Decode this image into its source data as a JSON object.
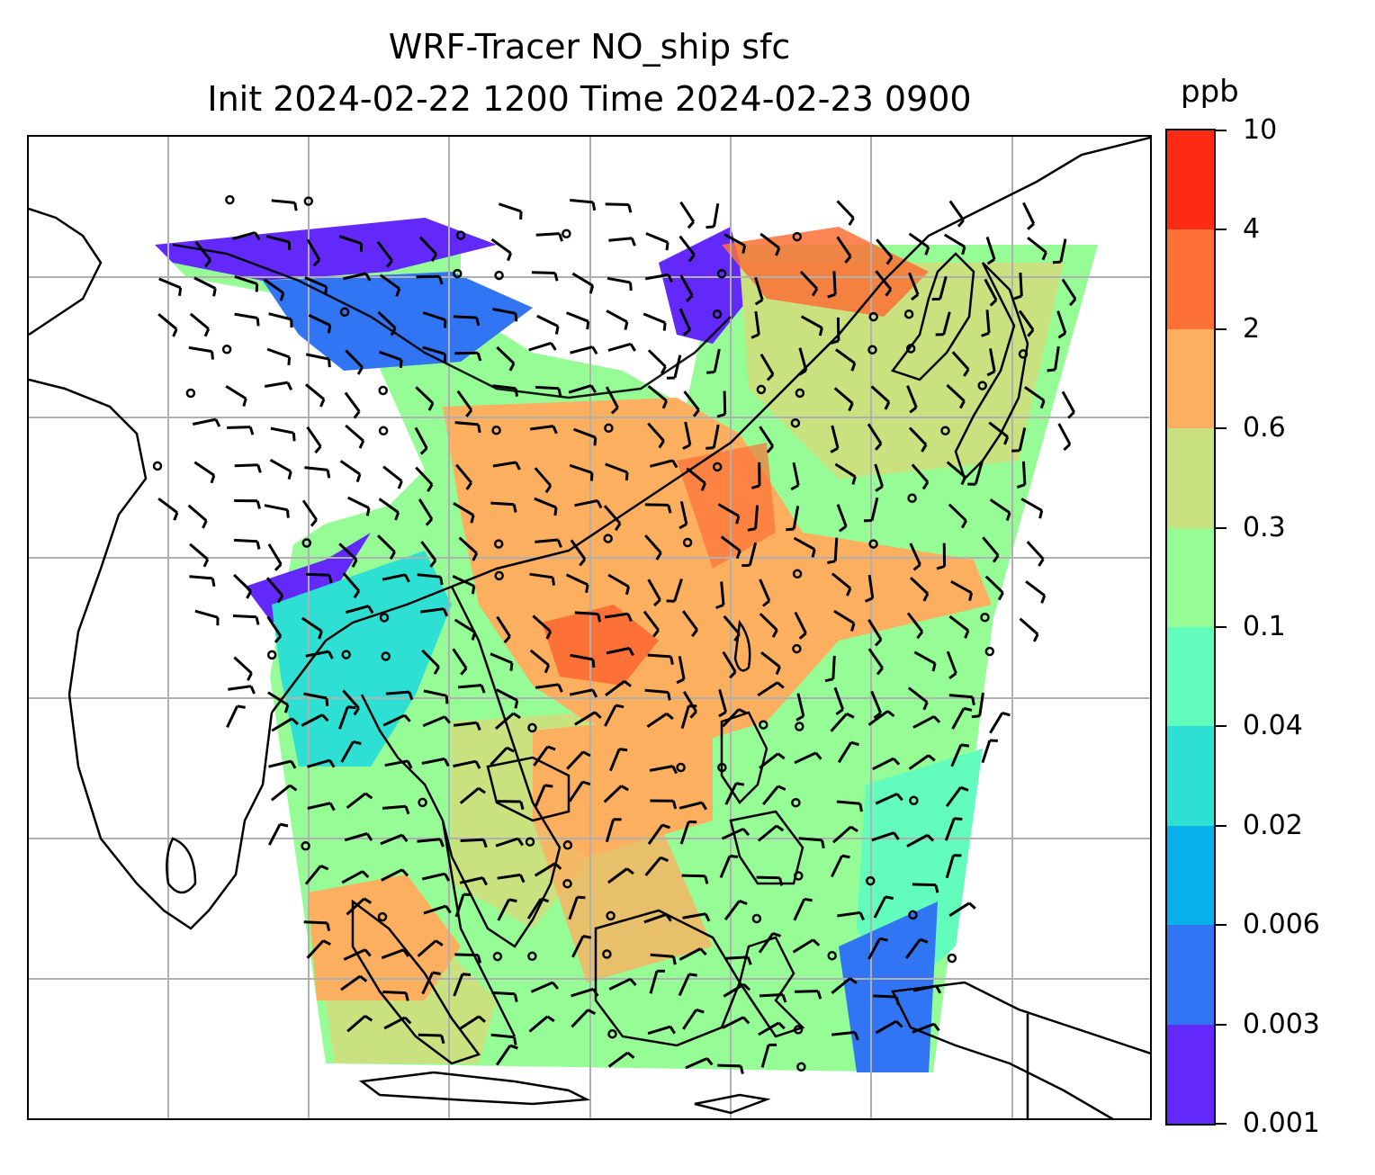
{
  "title": {
    "line1": "WRF-Tracer NO_ship sfc",
    "line2": "Init 2024-02-22 1200 Time 2024-02-23 0900"
  },
  "colorbar": {
    "units": "ppb",
    "levels": [
      "0.001",
      "0.003",
      "0.006",
      "0.02",
      "0.04",
      "0.1",
      "0.3",
      "0.6",
      "2",
      "4",
      "10"
    ],
    "colors": [
      "#6329fb",
      "#3175f4",
      "#08b1e9",
      "#2de0d3",
      "#62fdbd",
      "#96fd96",
      "#cae180",
      "#fdaf60",
      "#fd7036",
      "#fd2a14"
    ]
  },
  "map": {
    "projection": "Lambert conformal",
    "gridlines": true,
    "coastlines": true,
    "field": "NO_ship surface concentration",
    "overlay": "wind barbs",
    "background": "#ffffff",
    "gridline_color": "#b0b0b0"
  }
}
